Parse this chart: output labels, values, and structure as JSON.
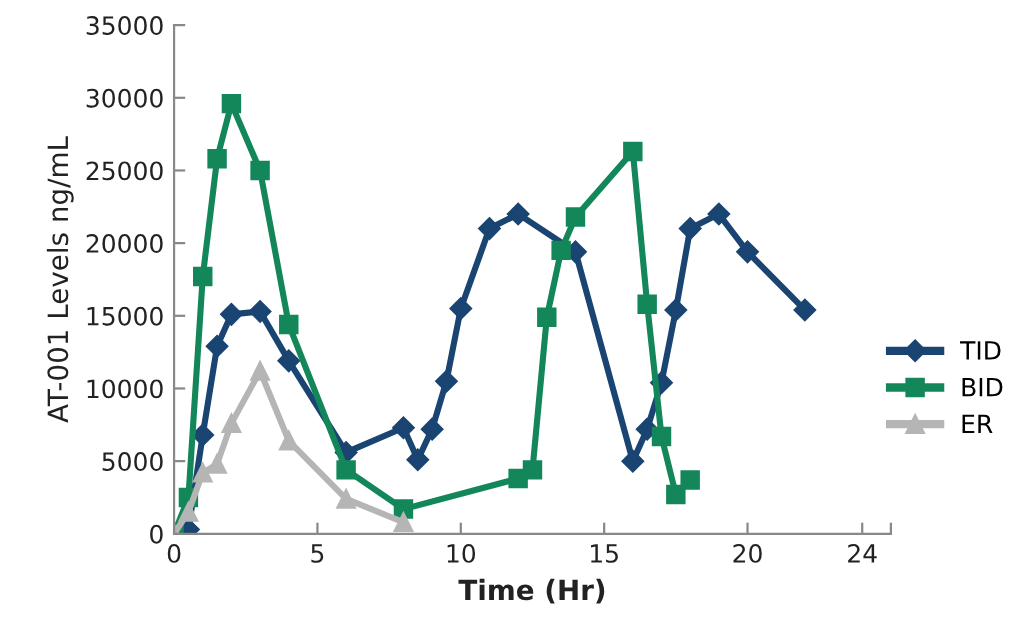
{
  "chart_data": {
    "type": "line",
    "xlabel": "Time (Hr)",
    "ylabel": "AT-001 Levels ng/mL",
    "xlim": [
      0,
      25
    ],
    "xticks": [
      0,
      5,
      10,
      15,
      20,
      24,
      {
        "value": 25,
        "label": null
      }
    ],
    "ylim": [
      0,
      35000
    ],
    "yticks": [
      0,
      5000,
      10000,
      15000,
      20000,
      25000,
      30000,
      35000
    ],
    "grid": false,
    "legend": "right",
    "series": [
      {
        "name": "TID",
        "color": "#1a4472",
        "marker": "diamond",
        "x": [
          0,
          0.5,
          1,
          1.5,
          2,
          3,
          4,
          6,
          8,
          8.5,
          9,
          9.5,
          10,
          11,
          12,
          14,
          16,
          16.5,
          17,
          17.5,
          18,
          19,
          20,
          22
        ],
        "values": [
          0,
          300,
          6800,
          12900,
          15100,
          15300,
          11900,
          5600,
          7300,
          5100,
          7200,
          10500,
          15500,
          21000,
          22000,
          19400,
          5000,
          7200,
          10400,
          15400,
          21000,
          22000,
          19400,
          15400
        ]
      },
      {
        "name": "BID",
        "color": "#138759",
        "marker": "square",
        "x": [
          0,
          0.5,
          1,
          1.5,
          2,
          3,
          4,
          6,
          8,
          12,
          12.5,
          13,
          13.5,
          14,
          16,
          16.5,
          17,
          17.5,
          18
        ],
        "values": [
          0,
          2500,
          17700,
          25800,
          29600,
          25000,
          14400,
          4400,
          1700,
          3800,
          4400,
          14900,
          19500,
          21800,
          26300,
          15800,
          6700,
          2700,
          3700
        ]
      },
      {
        "name": "ER",
        "color": "#b5b5b5",
        "marker": "triangle",
        "x": [
          0,
          0.5,
          1,
          1.5,
          2,
          3,
          4,
          6,
          8
        ],
        "values": [
          0,
          1500,
          4200,
          4800,
          7600,
          11200,
          6400,
          2400,
          800
        ]
      }
    ]
  }
}
